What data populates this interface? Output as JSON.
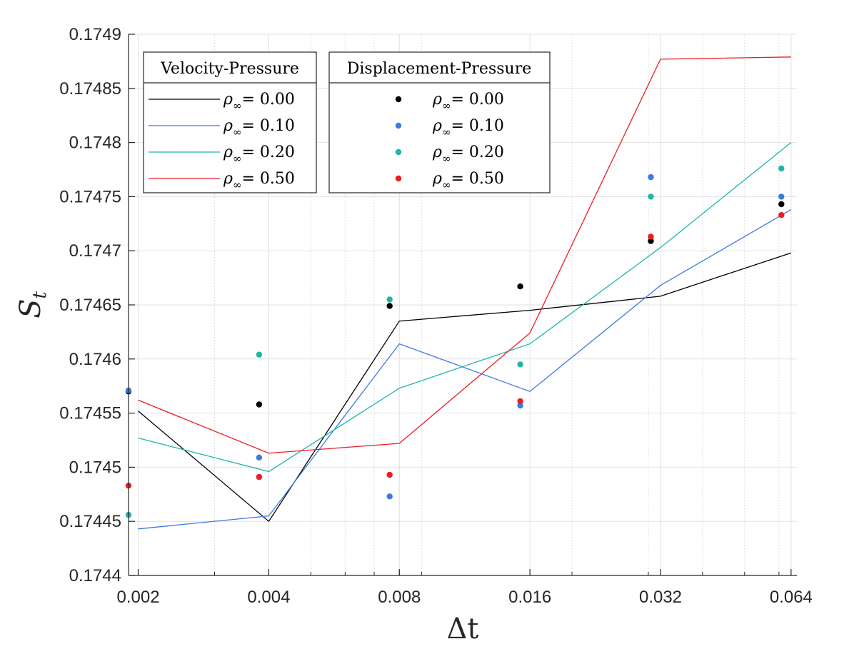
{
  "chart_data": {
    "type": "line",
    "title": "",
    "xlabel": "Δt",
    "ylabel": "S",
    "ylabel_subscript": "t",
    "x_scale": "log2",
    "grid": true,
    "minor_grid_x": true,
    "xlim": [
      0.0019,
      0.066
    ],
    "ylim": [
      0.1744,
      0.1749
    ],
    "x_ticks": [
      0.002,
      0.004,
      0.008,
      0.016,
      0.032,
      0.064
    ],
    "x_tick_labels": [
      "0.002",
      "0.004",
      "0.008",
      "0.016",
      "0.032",
      "0.064"
    ],
    "y_ticks": [
      0.1744,
      0.17445,
      0.1745,
      0.17455,
      0.1746,
      0.17465,
      0.1747,
      0.17475,
      0.1748,
      0.17485,
      0.1749
    ],
    "y_tick_labels": [
      "0.1744",
      "0.17445",
      "0.1745",
      "0.17455",
      "0.1746",
      "0.17465",
      "0.1747",
      "0.17475",
      "0.1748",
      "0.17485",
      "0.1749"
    ],
    "line_x": [
      0.002,
      0.004,
      0.008,
      0.016,
      0.032,
      0.064
    ],
    "marker_x": [
      0.0019,
      0.0038,
      0.0076,
      0.0152,
      0.0304,
      0.0608
    ],
    "legends": [
      {
        "title": "Velocity-Pressure",
        "kind": "line",
        "entries_ref": "line_series",
        "position": "top-left"
      },
      {
        "title": "Displacement-Pressure",
        "kind": "marker",
        "entries_ref": "marker_series",
        "position": "top-center"
      }
    ],
    "legend_symbol": "ρ",
    "legend_subscript": "∞",
    "line_series": [
      {
        "name": "0.00",
        "label": "= 0.00",
        "color": "#000000",
        "values": [
          0.174552,
          0.17445,
          0.174635,
          0.174645,
          0.174658,
          0.174698
        ]
      },
      {
        "name": "0.10",
        "label": "= 0.10",
        "color": "#3d7bde",
        "values": [
          0.174443,
          0.174455,
          0.174614,
          0.17457,
          0.174668,
          0.174738
        ]
      },
      {
        "name": "0.20",
        "label": "= 0.20",
        "color": "#1fb5ad",
        "values": [
          0.174527,
          0.174496,
          0.174573,
          0.174614,
          0.174703,
          0.1748
        ]
      },
      {
        "name": "0.50",
        "label": "= 0.50",
        "color": "#ec1c24",
        "values": [
          0.174562,
          0.174513,
          0.174522,
          0.174624,
          0.174877,
          0.174879
        ]
      }
    ],
    "marker_series": [
      {
        "name": "0.00",
        "label": "= 0.00",
        "color": "#000000",
        "values": [
          0.17457,
          0.174558,
          0.174649,
          0.174667,
          0.174709,
          0.174743
        ]
      },
      {
        "name": "0.10",
        "label": "= 0.10",
        "color": "#3d7bde",
        "values": [
          0.174571,
          0.174509,
          0.174473,
          0.174557,
          0.174768,
          0.17475
        ]
      },
      {
        "name": "0.20",
        "label": "= 0.20",
        "color": "#1fb5ad",
        "values": [
          0.174456,
          0.174604,
          0.174655,
          0.174595,
          0.17475,
          0.174776
        ]
      },
      {
        "name": "0.50",
        "label": "= 0.50",
        "color": "#ec1c24",
        "values": [
          0.174483,
          0.174491,
          0.174493,
          0.174561,
          0.174713,
          0.174733
        ]
      }
    ]
  }
}
